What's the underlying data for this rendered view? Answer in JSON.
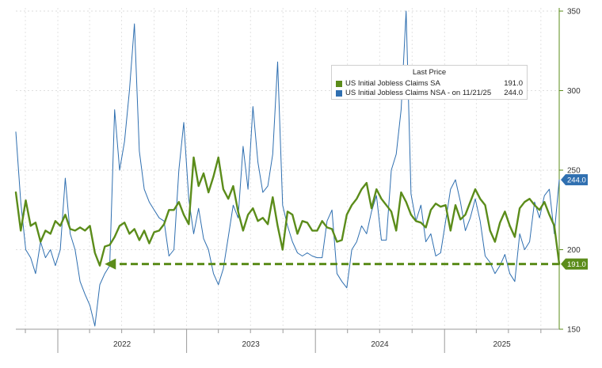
{
  "chart_data": {
    "type": "line",
    "title": "",
    "xlabel": "",
    "ylabel": "",
    "x_tick_labels": [
      "2022",
      "2023",
      "2024",
      "2025"
    ],
    "y_ticks": [
      150,
      200,
      250,
      300,
      350
    ],
    "ylim": [
      150,
      352
    ],
    "x_range": [
      "2021-09-04",
      "2025-11-22"
    ],
    "grid": true,
    "y_axis_side": "right",
    "legend_placement": "top-right",
    "legend": {
      "title": "Last Price",
      "entries": [
        {
          "label": "US Initial Jobless Claims SA",
          "value": "191.0",
          "color": "#5b8c1a"
        },
        {
          "label": "US Initial Jobless Claims NSA -  on 11/21/25",
          "value": "244.0",
          "color": "#2f6fb0"
        }
      ]
    },
    "last_value_tags": [
      {
        "series": "US Initial Jobless Claims NSA",
        "text": "244.0",
        "value": 244,
        "color": "#2f6fb0"
      },
      {
        "series": "US Initial Jobless Claims SA",
        "text": "191.0",
        "value": 191,
        "color": "#5b8c1a"
      }
    ],
    "annotations": [
      {
        "type": "dashed-arrow",
        "from_date": "2025-11-22",
        "to_date": "2022-05-14",
        "value": 191,
        "color": "#5b8c1a"
      }
    ],
    "series": [
      {
        "name": "US Initial Jobless Claims SA",
        "color": "#5b8c1a",
        "x": [
          "2021-09-04",
          "2021-09-18",
          "2021-10-02",
          "2021-10-16",
          "2021-10-30",
          "2021-11-13",
          "2021-11-27",
          "2021-12-11",
          "2021-12-25",
          "2022-01-08",
          "2022-01-22",
          "2022-02-05",
          "2022-02-19",
          "2022-03-05",
          "2022-03-19",
          "2022-04-02",
          "2022-04-16",
          "2022-04-30",
          "2022-05-14",
          "2022-05-28",
          "2022-06-11",
          "2022-06-25",
          "2022-07-09",
          "2022-07-23",
          "2022-08-06",
          "2022-08-20",
          "2022-09-03",
          "2022-09-17",
          "2022-10-01",
          "2022-10-15",
          "2022-10-29",
          "2022-11-12",
          "2022-11-26",
          "2022-12-10",
          "2022-12-24",
          "2023-01-07",
          "2023-01-21",
          "2023-02-04",
          "2023-02-18",
          "2023-03-04",
          "2023-03-18",
          "2023-04-01",
          "2023-04-15",
          "2023-04-29",
          "2023-05-13",
          "2023-05-27",
          "2023-06-10",
          "2023-06-24",
          "2023-07-08",
          "2023-07-22",
          "2023-08-05",
          "2023-08-19",
          "2023-09-02",
          "2023-09-16",
          "2023-09-30",
          "2023-10-14",
          "2023-10-28",
          "2023-11-11",
          "2023-11-25",
          "2023-12-09",
          "2023-12-23",
          "2024-01-06",
          "2024-01-20",
          "2024-02-03",
          "2024-02-17",
          "2024-03-02",
          "2024-03-16",
          "2024-03-30",
          "2024-04-13",
          "2024-04-27",
          "2024-05-11",
          "2024-05-25",
          "2024-06-08",
          "2024-06-22",
          "2024-07-06",
          "2024-07-20",
          "2024-08-03",
          "2024-08-17",
          "2024-08-31",
          "2024-09-14",
          "2024-09-28",
          "2024-10-12",
          "2024-10-26",
          "2024-11-09",
          "2024-11-23",
          "2024-12-07",
          "2024-12-21",
          "2025-01-04",
          "2025-01-18",
          "2025-02-01",
          "2025-02-15",
          "2025-03-01",
          "2025-03-15",
          "2025-03-29",
          "2025-04-12",
          "2025-04-26",
          "2025-05-10",
          "2025-05-24",
          "2025-06-07",
          "2025-06-21",
          "2025-07-05",
          "2025-07-19",
          "2025-08-02",
          "2025-08-16",
          "2025-08-30",
          "2025-09-13",
          "2025-09-27",
          "2025-10-11",
          "2025-10-25",
          "2025-11-08",
          "2025-11-22"
        ],
        "values": [
          236,
          212,
          231,
          215,
          217,
          205,
          212,
          210,
          218,
          215,
          222,
          213,
          212,
          214,
          212,
          215,
          198,
          190,
          202,
          203,
          208,
          215,
          217,
          210,
          213,
          206,
          212,
          204,
          211,
          212,
          216,
          225,
          225,
          230,
          222,
          216,
          258,
          240,
          248,
          236,
          246,
          258,
          238,
          232,
          240,
          224,
          212,
          222,
          226,
          218,
          220,
          216,
          233,
          215,
          200,
          224,
          222,
          210,
          218,
          217,
          212,
          212,
          218,
          214,
          213,
          205,
          206,
          222,
          228,
          232,
          238,
          242,
          226,
          238,
          232,
          228,
          224,
          212,
          236,
          230,
          222,
          218,
          217,
          214,
          225,
          229,
          227,
          228,
          212,
          228,
          219,
          222,
          230,
          238,
          232,
          228,
          212,
          205,
          217,
          224,
          215,
          208,
          226,
          230,
          232,
          228,
          225,
          230,
          222,
          215,
          191
        ]
      },
      {
        "name": "US Initial Jobless Claims NSA",
        "color": "#2f6fb0",
        "x": [
          "2021-09-04",
          "2021-09-18",
          "2021-10-02",
          "2021-10-16",
          "2021-10-30",
          "2021-11-13",
          "2021-11-27",
          "2021-12-11",
          "2021-12-25",
          "2022-01-08",
          "2022-01-22",
          "2022-02-05",
          "2022-02-19",
          "2022-03-05",
          "2022-03-19",
          "2022-04-02",
          "2022-04-16",
          "2022-04-30",
          "2022-05-14",
          "2022-05-28",
          "2022-06-11",
          "2022-06-25",
          "2022-07-09",
          "2022-07-23",
          "2022-08-06",
          "2022-08-20",
          "2022-09-03",
          "2022-09-17",
          "2022-10-01",
          "2022-10-15",
          "2022-10-29",
          "2022-11-12",
          "2022-11-26",
          "2022-12-10",
          "2022-12-24",
          "2023-01-07",
          "2023-01-21",
          "2023-02-04",
          "2023-02-18",
          "2023-03-04",
          "2023-03-18",
          "2023-04-01",
          "2023-04-15",
          "2023-04-29",
          "2023-05-13",
          "2023-05-27",
          "2023-06-10",
          "2023-06-24",
          "2023-07-08",
          "2023-07-22",
          "2023-08-05",
          "2023-08-19",
          "2023-09-02",
          "2023-09-16",
          "2023-09-30",
          "2023-10-14",
          "2023-10-28",
          "2023-11-11",
          "2023-11-25",
          "2023-12-09",
          "2023-12-23",
          "2024-01-06",
          "2024-01-20",
          "2024-02-03",
          "2024-02-17",
          "2024-03-02",
          "2024-03-16",
          "2024-03-30",
          "2024-04-13",
          "2024-04-27",
          "2024-05-11",
          "2024-05-25",
          "2024-06-08",
          "2024-06-22",
          "2024-07-06",
          "2024-07-20",
          "2024-08-03",
          "2024-08-17",
          "2024-08-31",
          "2024-09-14",
          "2024-09-28",
          "2024-10-12",
          "2024-10-26",
          "2024-11-09",
          "2024-11-23",
          "2024-12-07",
          "2024-12-21",
          "2025-01-04",
          "2025-01-18",
          "2025-02-01",
          "2025-02-15",
          "2025-03-01",
          "2025-03-15",
          "2025-03-29",
          "2025-04-12",
          "2025-04-26",
          "2025-05-10",
          "2025-05-24",
          "2025-06-07",
          "2025-06-21",
          "2025-07-05",
          "2025-07-19",
          "2025-08-02",
          "2025-08-16",
          "2025-08-30",
          "2025-09-13",
          "2025-09-27",
          "2025-10-11",
          "2025-10-25",
          "2025-11-08",
          "2025-11-22"
        ],
        "values": [
          274,
          230,
          200,
          195,
          185,
          205,
          195,
          200,
          190,
          200,
          245,
          210,
          200,
          180,
          172,
          165,
          152,
          178,
          185,
          190,
          288,
          250,
          268,
          300,
          342,
          262,
          238,
          230,
          225,
          220,
          218,
          196,
          200,
          250,
          280,
          232,
          210,
          226,
          207,
          200,
          185,
          178,
          188,
          208,
          228,
          220,
          265,
          238,
          290,
          255,
          236,
          240,
          260,
          318,
          228,
          215,
          205,
          198,
          196,
          198,
          196,
          195,
          195,
          218,
          225,
          185,
          180,
          176,
          200,
          205,
          215,
          210,
          224,
          234,
          206,
          206,
          250,
          260,
          288,
          350,
          235,
          218,
          228,
          205,
          210,
          196,
          198,
          218,
          238,
          244,
          230,
          212,
          220,
          232,
          218,
          196,
          192,
          185,
          190,
          197,
          185,
          180,
          210,
          200,
          205,
          230,
          220,
          234,
          238,
          210,
          244
        ]
      }
    ]
  }
}
